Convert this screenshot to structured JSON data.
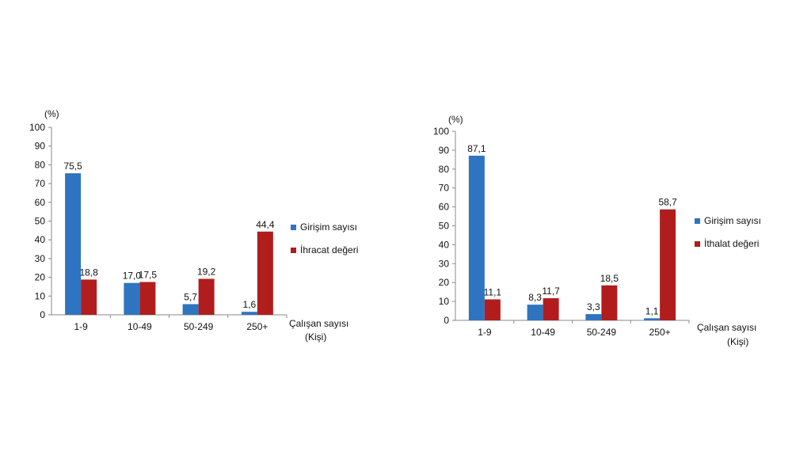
{
  "chart_data": [
    {
      "type": "bar",
      "title": "",
      "unit_label": "(%)",
      "categories": [
        "1-9",
        "10-49",
        "50-249",
        "250+"
      ],
      "series": [
        {
          "name": "Girişim sayısı",
          "color": "#2f74c0",
          "values": [
            75.5,
            17.0,
            5.7,
            1.6
          ],
          "labels": [
            "75,5",
            "17,0",
            "5,7",
            "1,6"
          ]
        },
        {
          "name": "İhracat değeri",
          "color": "#b11d1d",
          "values": [
            18.8,
            17.5,
            19.2,
            44.4
          ],
          "labels": [
            "18,8",
            "17,5",
            "19,2",
            "44,4"
          ]
        }
      ],
      "xlabel": "Çalışan sayısı",
      "xlabel_sub": "(Kişi)",
      "ylim": [
        0,
        100
      ],
      "yticks": [
        "0",
        "10",
        "20",
        "30",
        "40",
        "50",
        "60",
        "70",
        "80",
        "90",
        "100"
      ],
      "legend_position": "right",
      "grid": false
    },
    {
      "type": "bar",
      "title": "",
      "unit_label": "(%)",
      "categories": [
        "1-9",
        "10-49",
        "50-249",
        "250+"
      ],
      "series": [
        {
          "name": "Girişim sayısı",
          "color": "#2f74c0",
          "values": [
            87.1,
            8.3,
            3.3,
            1.1
          ],
          "labels": [
            "87,1",
            "8,3",
            "3,3",
            "1,1"
          ]
        },
        {
          "name": "İthalat değeri",
          "color": "#b11d1d",
          "values": [
            11.1,
            11.7,
            18.5,
            58.7
          ],
          "labels": [
            "11,1",
            "11,7",
            "18,5",
            "58,7"
          ]
        }
      ],
      "xlabel": "Çalışan sayısı",
      "xlabel_sub": "(Kişi)",
      "ylim": [
        0,
        100
      ],
      "yticks": [
        "0",
        "10",
        "20",
        "30",
        "40",
        "50",
        "60",
        "70",
        "80",
        "90",
        "100"
      ],
      "legend_position": "right",
      "grid": false
    }
  ]
}
